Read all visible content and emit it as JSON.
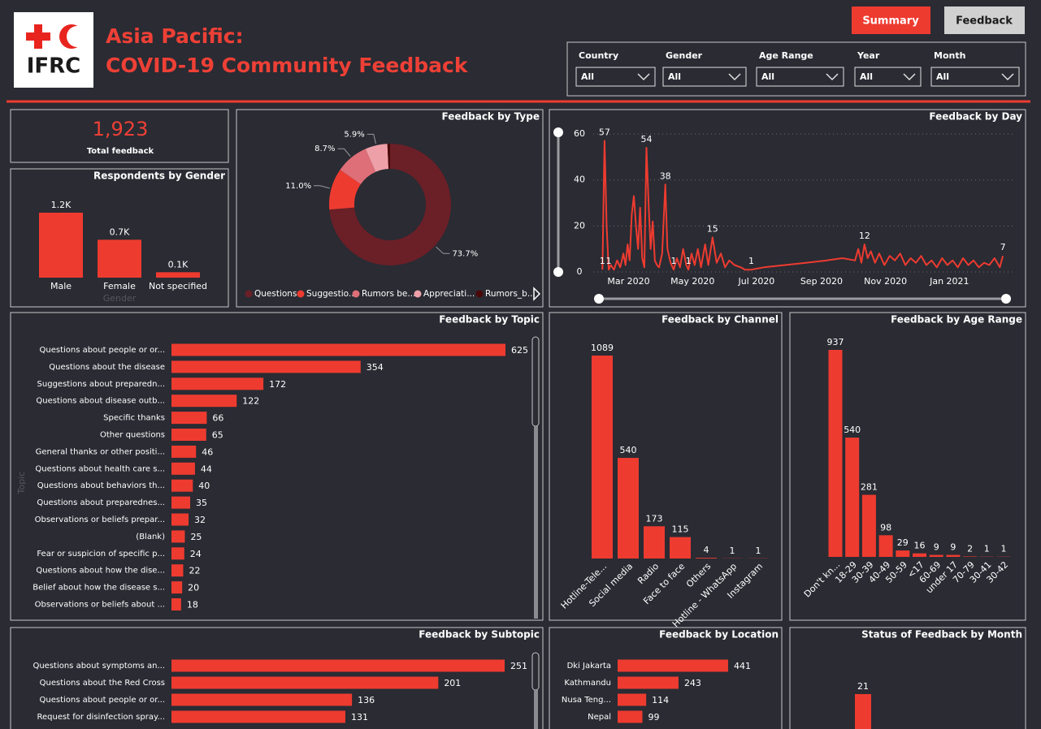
{
  "header": {
    "logo": "IFRC",
    "title": [
      "Asia Pacific:",
      "COVID-19 Community Feedback"
    ]
  },
  "buttons": [
    "Summary",
    "Feedback"
  ],
  "filters": [
    {
      "label": "Country",
      "value": "All"
    },
    {
      "label": "Gender",
      "value": "All"
    },
    {
      "label": "Age Range",
      "value": "All"
    },
    {
      "label": "Year",
      "value": "All"
    },
    {
      "label": "Month",
      "value": "All"
    }
  ],
  "kpi": {
    "value": "1,923",
    "label": "Total feedback"
  },
  "chart_data": [
    {
      "type": "bar",
      "title": "Respondents by Gender",
      "x_label": "Gender",
      "color": "#ee3b30",
      "categories": [
        "Male",
        "Female",
        "Not specified"
      ],
      "values": [
        1200,
        700,
        100
      ],
      "value_labels": [
        "1.2K",
        "0.7K",
        "0.1K"
      ]
    },
    {
      "type": "pie",
      "title": "Feedback by Type",
      "categories": [
        "Questions",
        "Suggestio...",
        "Rumors be...",
        "Appreciati...",
        "Rumors_b..."
      ],
      "values": [
        73.7,
        11.0,
        8.7,
        5.9,
        0.7
      ],
      "value_labels": [
        "73.7%",
        "11.0%",
        "8.7%",
        "5.9%",
        null
      ],
      "colors": [
        "#6b1f27",
        "#ee3b30",
        "#de6e78",
        "#eea0a8",
        "#4a0808"
      ]
    },
    {
      "type": "line",
      "title": "Feedback by Day",
      "color": "#ee3b30",
      "xlim": [
        35,
        421
      ],
      "ylim": [
        0,
        60
      ],
      "yticks": [
        0,
        20,
        40,
        60
      ],
      "grid": true,
      "xticks": [
        {
          "value": 61,
          "label": "Mar 2020"
        },
        {
          "value": 122,
          "label": "May 2020"
        },
        {
          "value": 183,
          "label": "Jul 2020"
        },
        {
          "value": 245,
          "label": "Sep 2020"
        },
        {
          "value": 306,
          "label": "Nov 2020"
        },
        {
          "value": 367,
          "label": "Jan 2021"
        }
      ],
      "x": [
        36,
        38,
        40,
        42,
        44,
        47,
        50,
        53,
        56,
        58,
        60,
        62,
        64,
        66,
        68,
        70,
        72,
        74,
        76,
        78,
        80,
        82,
        84,
        86,
        88,
        90,
        93,
        96,
        98,
        101,
        104,
        107,
        110,
        113,
        116,
        118,
        121,
        124,
        127,
        130,
        134,
        137,
        141,
        145,
        149,
        153,
        157,
        162,
        168,
        172,
        178,
        190,
        210,
        230,
        250,
        265,
        277,
        280,
        283,
        286,
        289,
        292,
        296,
        300,
        305,
        310,
        315,
        320,
        325,
        330,
        335,
        340,
        345,
        350,
        355,
        360,
        365,
        370,
        375,
        380,
        385,
        390,
        395,
        400,
        405,
        410,
        415,
        418
      ],
      "values": [
        1,
        57,
        20,
        1,
        3,
        1,
        5,
        2,
        8,
        3,
        12,
        5,
        25,
        33,
        20,
        10,
        28,
        6,
        2,
        54,
        30,
        10,
        22,
        5,
        3,
        2,
        8,
        38,
        10,
        4,
        1,
        6,
        2,
        10,
        3,
        1,
        8,
        3,
        10,
        2,
        12,
        3,
        15,
        4,
        8,
        2,
        5,
        3,
        2,
        1,
        1,
        2,
        3,
        4,
        5,
        6,
        5,
        10,
        4,
        12,
        6,
        9,
        4,
        8,
        3,
        7,
        5,
        8,
        3,
        6,
        4,
        7,
        3,
        5,
        2,
        6,
        3,
        5,
        2,
        6,
        3,
        5,
        2,
        4,
        3,
        6,
        2,
        7
      ],
      "value_labels": [
        "1",
        "57",
        null,
        "1",
        null,
        null,
        null,
        null,
        null,
        null,
        null,
        null,
        null,
        null,
        null,
        null,
        null,
        null,
        null,
        "54",
        null,
        null,
        null,
        null,
        null,
        null,
        null,
        "38",
        null,
        null,
        "1",
        null,
        null,
        null,
        null,
        "1",
        null,
        null,
        null,
        null,
        null,
        null,
        "15",
        null,
        null,
        null,
        null,
        null,
        null,
        null,
        "1",
        null,
        null,
        null,
        null,
        null,
        null,
        null,
        null,
        "12",
        null,
        null,
        null,
        null,
        null,
        null,
        null,
        null,
        null,
        null,
        null,
        null,
        null,
        null,
        null,
        null,
        null,
        null,
        null,
        null,
        null,
        null,
        null,
        null,
        null,
        null,
        null,
        "7"
      ]
    },
    {
      "type": "hbar",
      "title": "Feedback by Topic",
      "y_label": "Topic",
      "color": "#ee3b30",
      "categories": [
        "Questions about people or or...",
        "Questions about the disease",
        "Suggestions about preparedn...",
        "Questions about disease outb...",
        "Specific thanks",
        "Other questions",
        "General thanks or other positi...",
        "Questions about health care s...",
        "Questions about behaviors th...",
        "Questions about preparednes...",
        "Observations or beliefs prepar...",
        "(Blank)",
        "Fear or suspicion of specific p...",
        "Questions about how the dise...",
        "Belief about how the disease s...",
        "Observations or beliefs about ..."
      ],
      "values": [
        625,
        354,
        172,
        122,
        66,
        65,
        46,
        44,
        40,
        35,
        32,
        25,
        24,
        22,
        20,
        18
      ]
    },
    {
      "type": "bar",
      "title": "Feedback by Channel",
      "color": "#ee3b30",
      "categories": [
        "Hotline-Tele...",
        "Social media",
        "Radio",
        "Face to face",
        "Others",
        "Hotline - WhatsApp",
        "Instagram"
      ],
      "values": [
        1089,
        540,
        173,
        115,
        4,
        1,
        1
      ]
    },
    {
      "type": "bar",
      "title": "Feedback by Age Range",
      "color": "#ee3b30",
      "categories": [
        "Don't kn...",
        "18-29",
        "30-39",
        "40-49",
        "50-59",
        "<17",
        "60-69",
        "under 17",
        "70-79",
        "30-41",
        "30-42"
      ],
      "values": [
        937,
        540,
        281,
        98,
        29,
        16,
        9,
        9,
        2,
        1,
        1
      ]
    },
    {
      "type": "hbar",
      "title": "Feedback by Subtopic",
      "color": "#ee3b30",
      "categories": [
        "Questions about symptoms an...",
        "Questions about the Red Cross",
        "Questions about people or or...",
        "Request for disinfection spray..."
      ],
      "values": [
        251,
        201,
        136,
        131
      ]
    },
    {
      "type": "hbar",
      "title": "Feedback by Location",
      "color": "#ee3b30",
      "categories": [
        "Dki Jakarta",
        "Kathmandu",
        "Nusa Teng...",
        "Nepal"
      ],
      "values": [
        441,
        243,
        114,
        99
      ]
    },
    {
      "type": "bar",
      "title": "Status of Feedback by Month",
      "color": "#ee3b30",
      "categories": [
        null
      ],
      "values": [
        21
      ]
    }
  ]
}
